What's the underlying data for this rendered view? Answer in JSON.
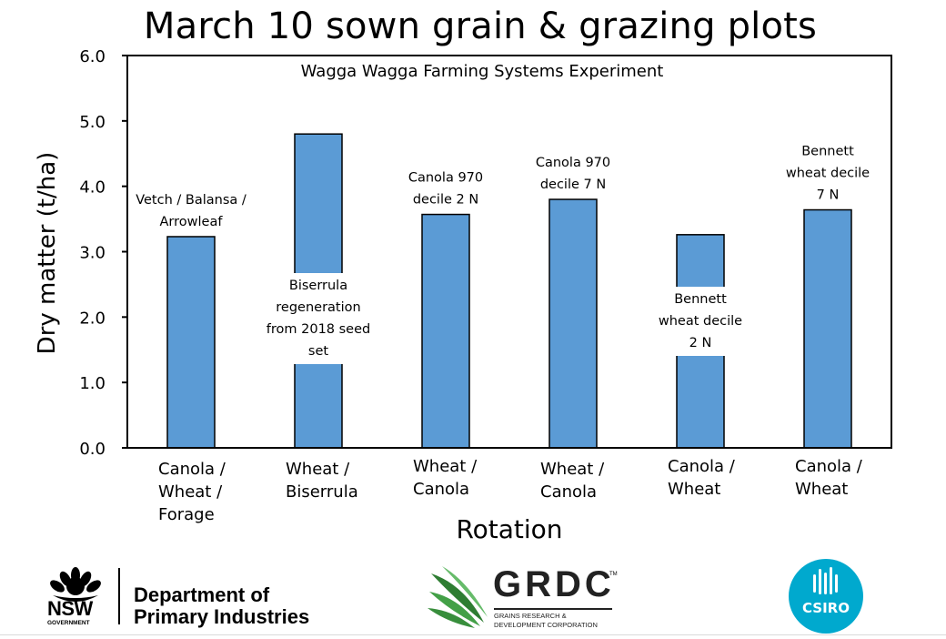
{
  "slide": {
    "title": "March 10 sown grain & grazing plots"
  },
  "chart_data": {
    "type": "bar",
    "title": "Wagga Wagga Farming Systems Experiment",
    "xlabel": "Rotation",
    "ylabel": "Dry matter (t/ha)",
    "ylim": [
      0,
      6
    ],
    "yticks": [
      "0.0",
      "1.0",
      "2.0",
      "3.0",
      "4.0",
      "5.0",
      "6.0"
    ],
    "grid": false,
    "bar_color": "#5b9bd5",
    "categories": [
      [
        "Canola /",
        "Wheat /",
        "Forage"
      ],
      [
        "Wheat /",
        "Biserrula"
      ],
      [
        "Wheat /",
        "Canola"
      ],
      [
        "Wheat /",
        "Canola"
      ],
      [
        "Canola /",
        "Wheat"
      ],
      [
        "Canola /",
        "Wheat"
      ]
    ],
    "values": [
      3.23,
      4.8,
      3.57,
      3.8,
      3.26,
      3.64
    ],
    "annotations": [
      [
        "Vetch / Balansa /",
        "Arrowleaf"
      ],
      [
        "Biserrula",
        "regeneration",
        "from 2018 seed",
        "set"
      ],
      [
        "Canola 970",
        "decile 2 N"
      ],
      [
        "Canola 970",
        "decile 7 N"
      ],
      [
        "Bennett",
        "wheat decile",
        "2 N"
      ],
      [
        "Bennett",
        "wheat decile",
        "7 N"
      ]
    ]
  },
  "logos": {
    "nsw": {
      "name": "NSW",
      "sub": "GOVERNMENT",
      "line1": "Department of",
      "line2": "Primary Industries"
    },
    "grdc": {
      "name": "GRDC",
      "tm": "TM",
      "line1": "GRAINS RESEARCH &",
      "line2": "DEVELOPMENT CORPORATION"
    },
    "csiro": {
      "name": "CSIRO",
      "accent": "#00a9ce"
    }
  }
}
